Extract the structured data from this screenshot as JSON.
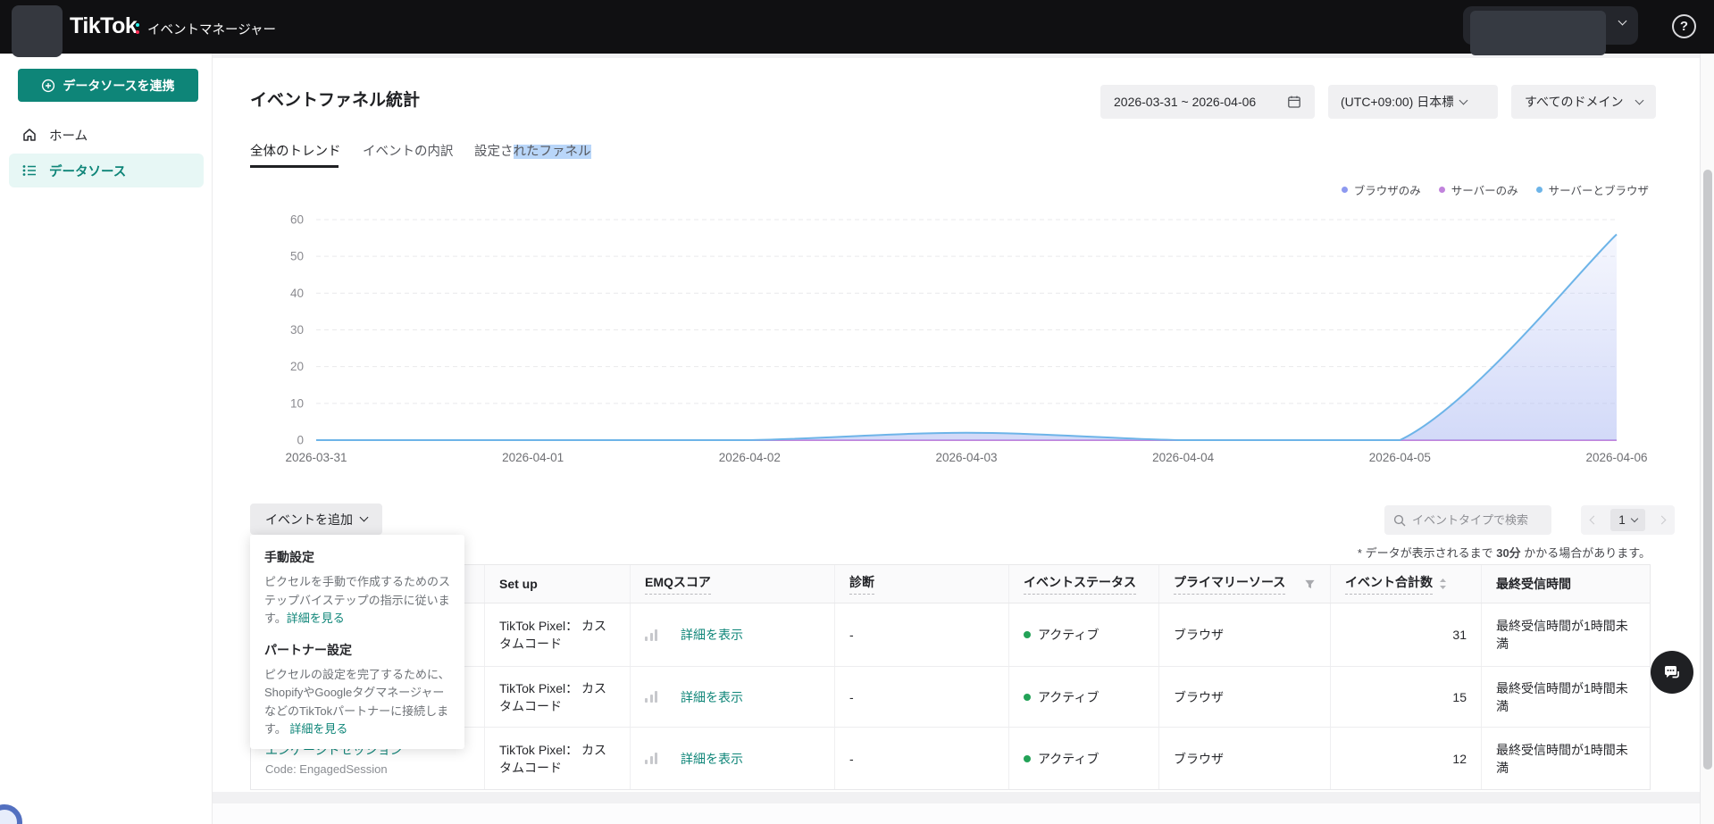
{
  "header": {
    "logo_text": "TikTok",
    "app_title": "イベントマネージャー",
    "help_label": "?"
  },
  "sidebar": {
    "connect_button_label": "データソースを連携",
    "items": [
      {
        "label": "ホーム",
        "active": false
      },
      {
        "label": "データソース",
        "active": true
      }
    ]
  },
  "filters": {
    "date_range": "2026-03-31 ~ 2026-04-06",
    "timezone": "(UTC+09:00) 日本標準時",
    "domain": "すべてのドメイン"
  },
  "page": {
    "title": "イベントファネル統計",
    "tabs": {
      "overall_trend": "全体のトレンド",
      "event_breakdown": "イベントの内訳",
      "funnel_prefix": "設定さ",
      "funnel_highlighted": "れたファネル"
    }
  },
  "chart_data": {
    "type": "area",
    "title": "",
    "xlabel": "",
    "ylabel": "",
    "x": [
      "2026-03-31",
      "2026-04-01",
      "2026-04-02",
      "2026-04-03",
      "2026-04-04",
      "2026-04-05",
      "2026-04-06"
    ],
    "series": [
      {
        "name": "ブラウザのみ",
        "color": "#8d99f0",
        "values": [
          0,
          0,
          0,
          0,
          0,
          0,
          0
        ],
        "fill": false
      },
      {
        "name": "サーバーのみ",
        "color": "#c183dc",
        "values": [
          0,
          0,
          0,
          0,
          0,
          0,
          0
        ],
        "fill": false
      },
      {
        "name": "サーバーとブラウザ",
        "color": "#6db4e8",
        "values": [
          0,
          0,
          0,
          2,
          0,
          0,
          56
        ],
        "fill": true
      }
    ],
    "ylim": [
      0,
      60
    ],
    "yticks": [
      0,
      10,
      20,
      30,
      40,
      50,
      60
    ],
    "grid": "horizontal-dashed",
    "legend_position": "top-right"
  },
  "toolbar": {
    "add_event_button": "イベントを追加",
    "search_placeholder": "イベントタイプで検索",
    "page_number": "1",
    "note_prefix": "* データが表示されるまで ",
    "note_bold": "30分",
    "note_suffix": " かかる場合があります。"
  },
  "add_event_menu": {
    "manual": {
      "title": "手動設定",
      "description": "ピクセルを手動で作成するためのステップバイステップの指示に従います。",
      "link": "詳細を見る"
    },
    "partner": {
      "title": "パートナー設定",
      "description": "ピクセルの設定を完了するために、ShopifyやGoogleタグマネージャーなどのTikTokパートナーに接続します。",
      "link": "詳細を見る"
    }
  },
  "table": {
    "headers": {
      "setup": "Set up",
      "emq": "EMQスコア",
      "diagnosis": "診断",
      "status": "イベントステータス",
      "primary_source": "プライマリーソース",
      "total": "イベント合計数",
      "last_received": "最終受信時間"
    },
    "rows": [
      {
        "setup": "TikTok Pixel： カスタムコード",
        "emq_link": "詳細を表示",
        "diagnosis": "-",
        "status": "アクティブ",
        "source": "ブラウザ",
        "total": "31",
        "last": "最終受信時間が1時間未満"
      },
      {
        "setup": "TikTok Pixel： カスタムコード",
        "emq_link": "詳細を表示",
        "diagnosis": "-",
        "status": "アクティブ",
        "source": "ブラウザ",
        "total": "15",
        "last": "最終受信時間が1時間未満"
      },
      {
        "event_type": "エンゲージドセッション",
        "event_code": "Code: EngagedSession",
        "setup": "TikTok Pixel： カスタムコード",
        "emq_link": "詳細を表示",
        "diagnosis": "-",
        "status": "アクティブ",
        "source": "ブラウザ",
        "total": "12",
        "last": "最終受信時間が1時間未満"
      }
    ]
  },
  "colors": {
    "accent_teal": "#0e8578",
    "status_green": "#23a257",
    "selection_highlight": "#b9d6f9",
    "header_bg": "#101012"
  }
}
